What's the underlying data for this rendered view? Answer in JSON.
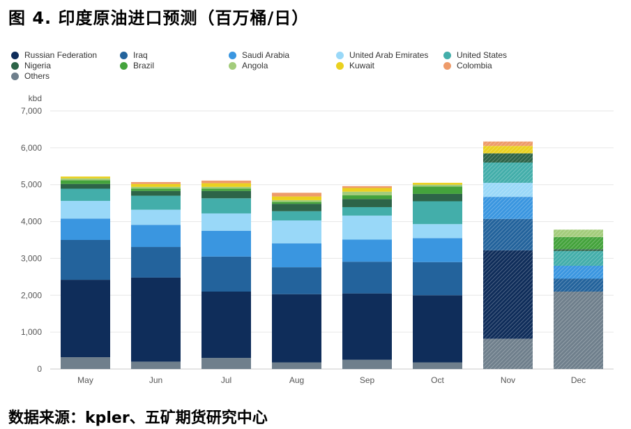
{
  "figure": {
    "title": "图 4.  印度原油进口预测（百万桶/日）",
    "source": "数据来源：kpler、五矿期货研究中心"
  },
  "colors": {
    "Russian Federation": "#0f2d5a",
    "Iraq": "#23639c",
    "Saudi Arabia": "#3a96e0",
    "United Arab Emirates": "#99d8f8",
    "United States": "#43aeaa",
    "Nigeria": "#2d6448",
    "Brazil": "#44a33c",
    "Angola": "#a3cc7b",
    "Kuwait": "#ead11f",
    "Colombia": "#ee9b6a",
    "Others": "#6f7f8c"
  },
  "chart_data": {
    "type": "bar",
    "stacked": true,
    "title": "",
    "ylabel": "kbd",
    "xlabel": "",
    "ylim": [
      0,
      7000
    ],
    "yticks": [
      0,
      1000,
      2000,
      3000,
      4000,
      5000,
      6000,
      7000
    ],
    "ytick_labels": [
      "0",
      "1,000",
      "2,000",
      "3,000",
      "4,000",
      "5,000",
      "6,000",
      "7,000"
    ],
    "grid": true,
    "legend_position": "top",
    "categories": [
      "May",
      "Jun",
      "Jul",
      "Aug",
      "Sep",
      "Oct",
      "Nov",
      "Dec"
    ],
    "forecast_categories": [
      "Nov",
      "Dec"
    ],
    "stack_order": [
      "Others",
      "Russian Federation",
      "Iraq",
      "Saudi Arabia",
      "United Arab Emirates",
      "United States",
      "Nigeria",
      "Brazil",
      "Angola",
      "Kuwait",
      "Colombia"
    ],
    "series": [
      {
        "name": "Russian Federation",
        "values": [
          2100,
          2280,
          1800,
          1850,
          1800,
          1820,
          2400,
          0
        ]
      },
      {
        "name": "Iraq",
        "values": [
          1080,
          830,
          950,
          730,
          860,
          900,
          850,
          350
        ]
      },
      {
        "name": "Saudi Arabia",
        "values": [
          580,
          600,
          700,
          650,
          600,
          650,
          600,
          350
        ]
      },
      {
        "name": "United Arab Emirates",
        "values": [
          480,
          410,
          470,
          620,
          650,
          380,
          380,
          0
        ]
      },
      {
        "name": "United States",
        "values": [
          330,
          380,
          410,
          250,
          230,
          620,
          550,
          400
        ]
      },
      {
        "name": "Nigeria",
        "values": [
          130,
          130,
          200,
          200,
          220,
          200,
          250,
          50
        ]
      },
      {
        "name": "Brazil",
        "values": [
          100,
          60,
          60,
          50,
          100,
          200,
          0,
          330
        ]
      },
      {
        "name": "Angola",
        "values": [
          50,
          50,
          50,
          50,
          100,
          50,
          0,
          200
        ]
      },
      {
        "name": "Kuwait",
        "values": [
          50,
          80,
          100,
          100,
          100,
          50,
          200,
          0
        ]
      },
      {
        "name": "Colombia",
        "values": [
          0,
          50,
          70,
          100,
          50,
          0,
          120,
          0
        ]
      },
      {
        "name": "Others",
        "values": [
          320,
          200,
          300,
          180,
          250,
          180,
          820,
          2100
        ]
      }
    ]
  }
}
